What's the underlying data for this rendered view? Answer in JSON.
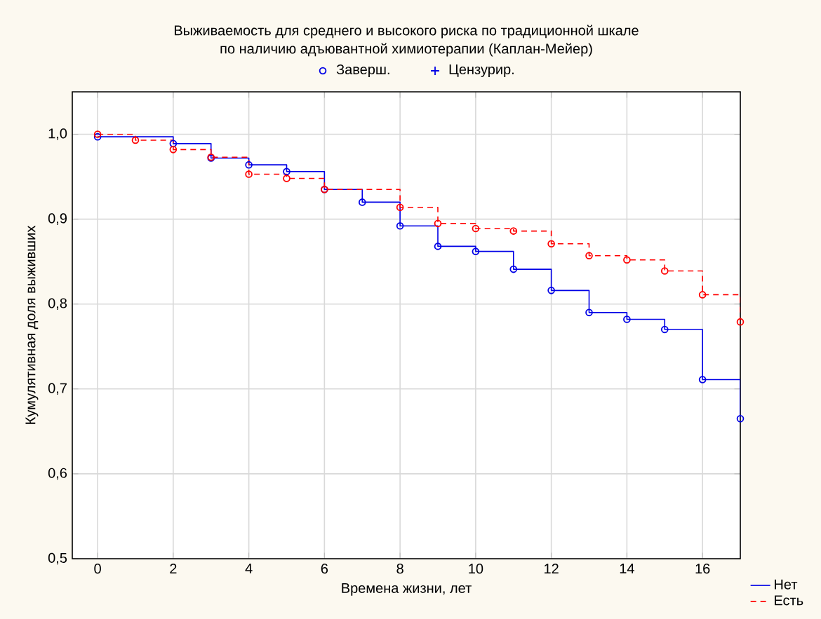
{
  "chart_data": {
    "type": "step",
    "title": "Выживаемость для среднего и высокого риска по традиционной шкале",
    "subtitle": "по наличию адъювантной химиотерапии (Каплан-Мейер)",
    "xlabel": "Времена жизни, лет",
    "ylabel": "Кумулятивная доля выживших",
    "annotations": [
      "Заверш.",
      "Цензурир."
    ],
    "xlim": [
      -0.67,
      17
    ],
    "xticks": [
      0,
      2,
      4,
      6,
      8,
      10,
      12,
      14,
      16
    ],
    "ylim": [
      0.5,
      1.05
    ],
    "yticks": [
      {
        "value": 0.5,
        "label": "0,5"
      },
      {
        "value": 0.6,
        "label": "0,6"
      },
      {
        "value": 0.7,
        "label": "0,7"
      },
      {
        "value": 0.8,
        "label": "0,8"
      },
      {
        "value": 0.9,
        "label": "0,9"
      },
      {
        "value": 1.0,
        "label": "1,0"
      }
    ],
    "grid": true,
    "legend": "bottom right",
    "marker": "circle",
    "series": [
      {
        "name": "Нет",
        "color": "#0000e6",
        "line_style": "solid",
        "x": [
          0,
          2,
          3,
          4,
          5,
          6,
          7,
          8,
          9,
          10,
          11,
          12,
          13,
          14,
          15,
          16,
          17
        ],
        "values": [
          0.997,
          0.989,
          0.972,
          0.964,
          0.956,
          0.935,
          0.92,
          0.892,
          0.868,
          0.862,
          0.841,
          0.816,
          0.79,
          0.782,
          0.77,
          0.711,
          0.665
        ]
      },
      {
        "name": "Есть",
        "color": "#ff0000",
        "line_style": "dashed",
        "x": [
          0,
          1,
          2,
          3,
          4,
          5,
          6,
          8,
          9,
          10,
          11,
          12,
          13,
          14,
          15,
          16,
          17
        ],
        "values": [
          1.0,
          0.993,
          0.982,
          0.973,
          0.953,
          0.948,
          0.935,
          0.914,
          0.895,
          0.889,
          0.886,
          0.871,
          0.857,
          0.852,
          0.839,
          0.811,
          0.779
        ]
      }
    ]
  }
}
